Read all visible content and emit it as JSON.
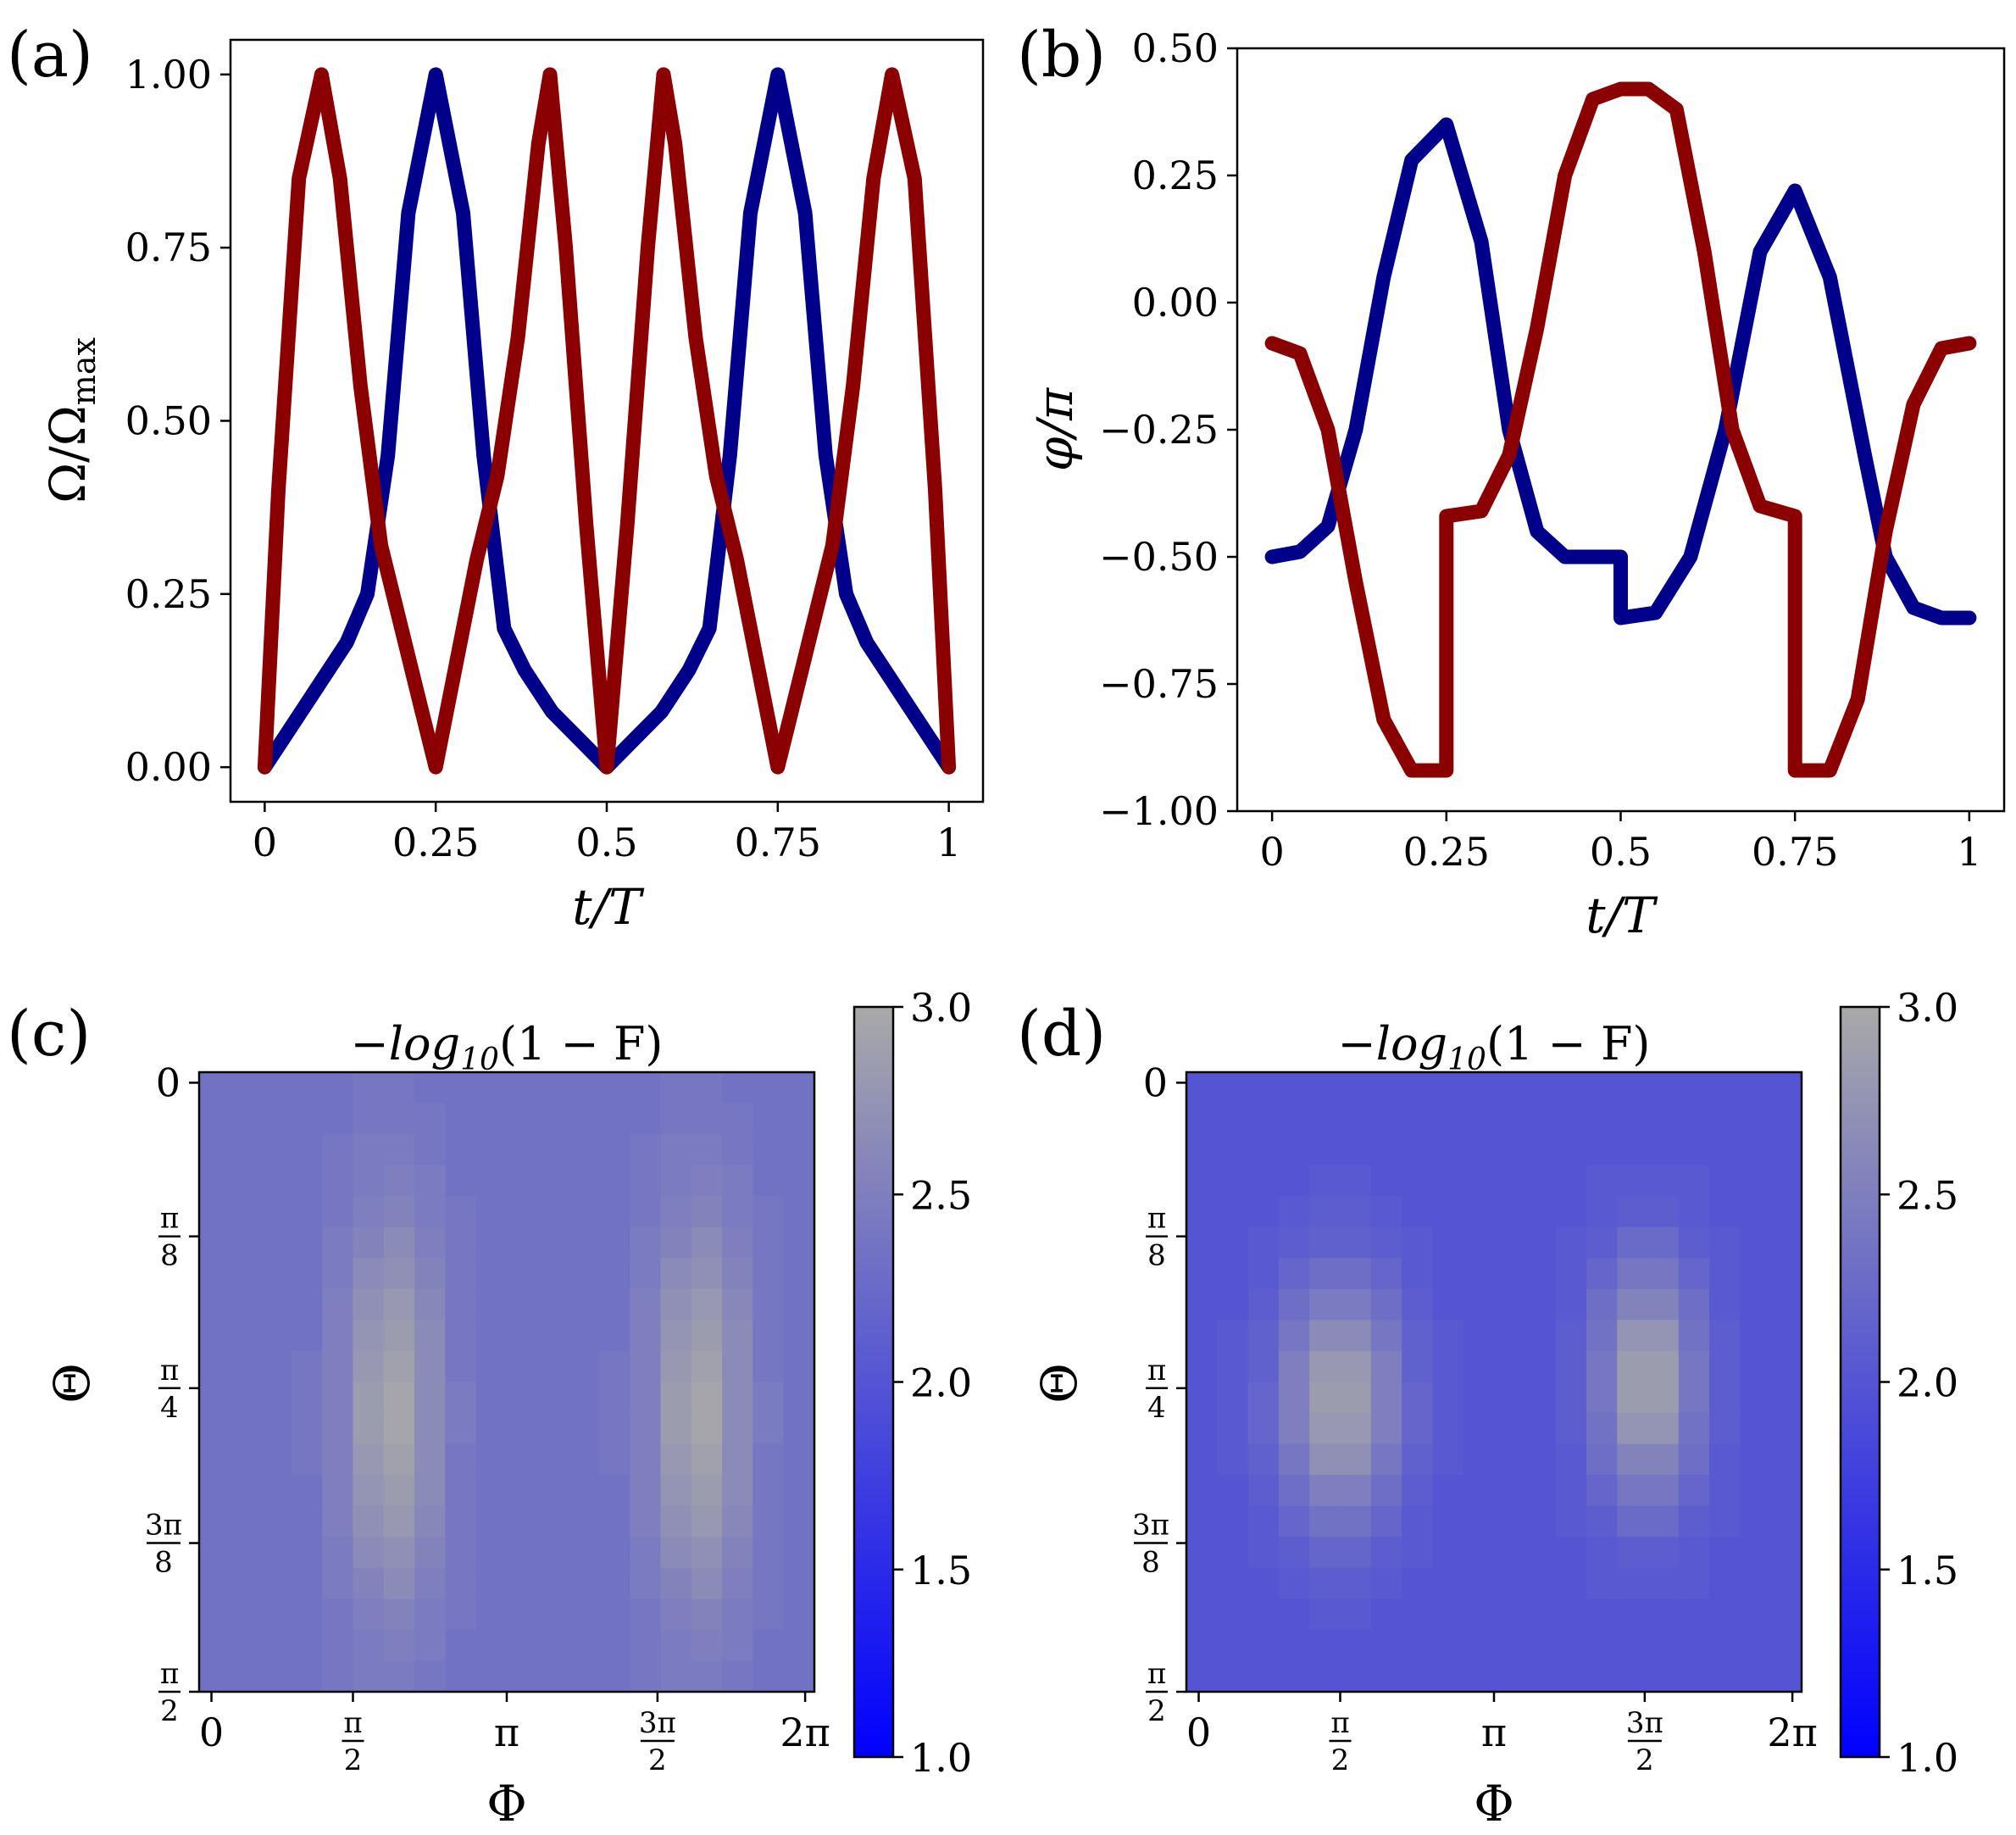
{
  "figure": {
    "panels": [
      "(a)",
      "(b)",
      "(c)",
      "(d)"
    ]
  },
  "colors": {
    "series1": "#00008b",
    "series2": "#8b0000",
    "colormap": [
      "#0000ff",
      "#a9a9a9"
    ],
    "heat_low": "#4f4fd9",
    "heat_mid": "#7a7ac8"
  },
  "chart_data": [
    {
      "panel": "(a)",
      "type": "line",
      "xlabel": "t/T",
      "ylabel": "Ω/Ω_max",
      "ylabel_main": "Ω/Ω",
      "ylabel_sub": "max",
      "xlim": [
        -0.05,
        1.05
      ],
      "ylim": [
        -0.05,
        1.05
      ],
      "xticks": [
        0,
        0.25,
        0.5,
        0.75,
        1
      ],
      "xtick_labels": [
        "0",
        "0.25",
        "0.5",
        "0.75",
        "1"
      ],
      "yticks": [
        0,
        0.25,
        0.5,
        0.75,
        1
      ],
      "ytick_labels": [
        "0.00",
        "0.25",
        "0.50",
        "0.75",
        "1.00"
      ],
      "series": [
        {
          "name": "blue",
          "color": "#00008b",
          "x": [
            0,
            0.04,
            0.08,
            0.12,
            0.15,
            0.18,
            0.21,
            0.25,
            0.29,
            0.32,
            0.35,
            0.38,
            0.42,
            0.46,
            0.5,
            0.54,
            0.58,
            0.62,
            0.65,
            0.68,
            0.71,
            0.75,
            0.79,
            0.82,
            0.85,
            0.88,
            0.92,
            0.96,
            1
          ],
          "y": [
            0,
            0.06,
            0.12,
            0.18,
            0.25,
            0.45,
            0.8,
            1.0,
            0.8,
            0.45,
            0.2,
            0.14,
            0.08,
            0.04,
            0,
            0.04,
            0.08,
            0.14,
            0.2,
            0.45,
            0.8,
            1.0,
            0.8,
            0.45,
            0.25,
            0.18,
            0.12,
            0.06,
            0
          ]
        },
        {
          "name": "red",
          "color": "#8b0000",
          "x": [
            0,
            0.02,
            0.05,
            0.083,
            0.11,
            0.14,
            0.17,
            0.2,
            0.23,
            0.25,
            0.28,
            0.31,
            0.34,
            0.37,
            0.4,
            0.417,
            0.44,
            0.47,
            0.5,
            0.53,
            0.56,
            0.583,
            0.6,
            0.63,
            0.66,
            0.69,
            0.72,
            0.75,
            0.77,
            0.8,
            0.83,
            0.86,
            0.89,
            0.917,
            0.95,
            0.98,
            1
          ],
          "y": [
            0,
            0.4,
            0.85,
            1.0,
            0.85,
            0.55,
            0.32,
            0.2,
            0.08,
            0,
            0.15,
            0.3,
            0.42,
            0.62,
            0.9,
            1.0,
            0.75,
            0.35,
            0,
            0.35,
            0.75,
            1.0,
            0.9,
            0.62,
            0.42,
            0.3,
            0.15,
            0,
            0.08,
            0.2,
            0.32,
            0.55,
            0.85,
            1.0,
            0.85,
            0.4,
            0
          ]
        }
      ]
    },
    {
      "panel": "(b)",
      "type": "line",
      "xlabel": "t/T",
      "ylabel": "φ/π",
      "xlim": [
        -0.05,
        1.05
      ],
      "ylim": [
        -1.0,
        0.5
      ],
      "xticks": [
        0,
        0.25,
        0.5,
        0.75,
        1
      ],
      "xtick_labels": [
        "0",
        "0.25",
        "0.5",
        "0.75",
        "1"
      ],
      "yticks": [
        -1.0,
        -0.75,
        -0.5,
        -0.25,
        0,
        0.25,
        0.5
      ],
      "ytick_labels": [
        "−1.00",
        "−0.75",
        "−0.50",
        "−0.25",
        "0.00",
        "0.25",
        "0.50"
      ],
      "series": [
        {
          "name": "blue",
          "color": "#00008b",
          "x": [
            0,
            0.04,
            0.08,
            0.12,
            0.16,
            0.2,
            0.25,
            0.3,
            0.34,
            0.38,
            0.42,
            0.46,
            0.5,
            0.5,
            0.55,
            0.6,
            0.65,
            0.7,
            0.75,
            0.8,
            0.85,
            0.88,
            0.92,
            0.96,
            1
          ],
          "y": [
            -0.5,
            -0.49,
            -0.44,
            -0.25,
            0.05,
            0.28,
            0.35,
            0.12,
            -0.25,
            -0.45,
            -0.5,
            -0.5,
            -0.5,
            -0.62,
            -0.61,
            -0.5,
            -0.25,
            0.1,
            0.22,
            0.05,
            -0.3,
            -0.5,
            -0.6,
            -0.62,
            -0.62
          ]
        },
        {
          "name": "red",
          "color": "#8b0000",
          "x": [
            0,
            0.04,
            0.08,
            0.12,
            0.16,
            0.2,
            0.25,
            0.25,
            0.3,
            0.34,
            0.38,
            0.42,
            0.46,
            0.5,
            0.54,
            0.58,
            0.62,
            0.66,
            0.7,
            0.75,
            0.75,
            0.8,
            0.84,
            0.88,
            0.92,
            0.96,
            1
          ],
          "y": [
            -0.08,
            -0.1,
            -0.25,
            -0.55,
            -0.82,
            -0.92,
            -0.92,
            -0.42,
            -0.41,
            -0.3,
            -0.05,
            0.25,
            0.4,
            0.42,
            0.42,
            0.38,
            0.1,
            -0.25,
            -0.4,
            -0.42,
            -0.92,
            -0.92,
            -0.78,
            -0.45,
            -0.2,
            -0.09,
            -0.08
          ]
        }
      ]
    },
    {
      "panel": "(c)",
      "type": "heatmap",
      "title": "−log10(1 − F)",
      "title_main": "−log",
      "title_sub": "10",
      "title_rest": "(1 − F)",
      "xlabel": "Φ",
      "ylabel": "Θ",
      "xtick_labels": [
        "0",
        "π/2",
        "π",
        "3π/2",
        "2π"
      ],
      "ytick_labels": [
        "0",
        "π/8",
        "π/4",
        "3π/8",
        "π/2"
      ],
      "colorbar": {
        "range": [
          1.0,
          3.0
        ],
        "ticks": [
          "1.0",
          "1.5",
          "2.0",
          "2.5",
          "3.0"
        ]
      },
      "grid_size": [
        20,
        20
      ],
      "base_value": 2.35,
      "peaks": [
        {
          "phi": 0.3125,
          "theta": 0.55,
          "height": 0.62,
          "sx": 0.055,
          "sy": 0.22
        },
        {
          "phi": 0.8125,
          "theta": 0.55,
          "height": 0.62,
          "sx": 0.055,
          "sy": 0.22
        }
      ]
    },
    {
      "panel": "(d)",
      "type": "heatmap",
      "title": "−log10(1 − F)",
      "title_main": "−log",
      "title_sub": "10",
      "title_rest": "(1 − F)",
      "xlabel": "Φ",
      "ylabel": "Θ",
      "xtick_labels": [
        "0",
        "π/2",
        "π",
        "3π/2",
        "2π"
      ],
      "ytick_labels": [
        "0",
        "π/8",
        "π/4",
        "3π/8",
        "π/2"
      ],
      "colorbar": {
        "range": [
          1.0,
          3.0
        ],
        "ticks": [
          "1.0",
          "1.5",
          "2.0",
          "2.5",
          "3.0"
        ]
      },
      "grid_size": [
        20,
        20
      ],
      "base_value": 2.0,
      "peaks": [
        {
          "phi": 0.25,
          "theta": 0.53,
          "height": 0.92,
          "sx": 0.07,
          "sy": 0.14
        },
        {
          "phi": 0.75,
          "theta": 0.5,
          "height": 0.92,
          "sx": 0.06,
          "sy": 0.14
        }
      ]
    }
  ]
}
